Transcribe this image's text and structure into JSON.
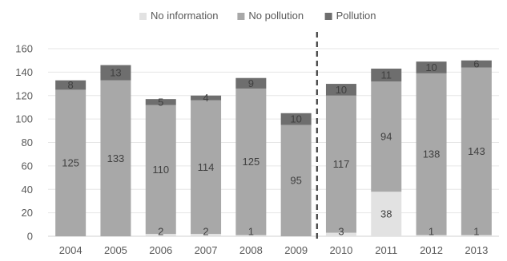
{
  "chart_data": {
    "type": "bar",
    "stacked": true,
    "categories": [
      "2004",
      "2005",
      "2006",
      "2007",
      "2008",
      "2009",
      "2010",
      "2011",
      "2012",
      "2013"
    ],
    "series": [
      {
        "name": "No information",
        "color": "#e2e2e2",
        "values": [
          0,
          0,
          2,
          2,
          1,
          0,
          3,
          38,
          1,
          1
        ],
        "labels": [
          "",
          "",
          "2",
          "2",
          "1",
          "",
          "3",
          "38",
          "1",
          "1"
        ]
      },
      {
        "name": "No pollution",
        "color": "#a8a8a8",
        "values": [
          125,
          133,
          110,
          114,
          125,
          95,
          117,
          94,
          138,
          143
        ],
        "labels": [
          "125",
          "133",
          "110",
          "114",
          "125",
          "95",
          "117",
          "94",
          "138",
          "143"
        ]
      },
      {
        "name": "Pollution",
        "color": "#6e6e6e",
        "values": [
          8,
          13,
          5,
          4,
          9,
          10,
          10,
          11,
          10,
          6
        ],
        "labels": [
          "8",
          "13",
          "5",
          "4",
          "9",
          "10",
          "10",
          "11",
          "10",
          "6"
        ]
      }
    ],
    "yticks": [
      "0",
      "20",
      "40",
      "60",
      "80",
      "100",
      "120",
      "140",
      "160"
    ],
    "ylim": [
      0,
      160
    ],
    "xlabel": "",
    "ylabel": "",
    "title": "",
    "legend": "top",
    "grid": true,
    "divider_between": [
      "2009",
      "2010"
    ]
  }
}
